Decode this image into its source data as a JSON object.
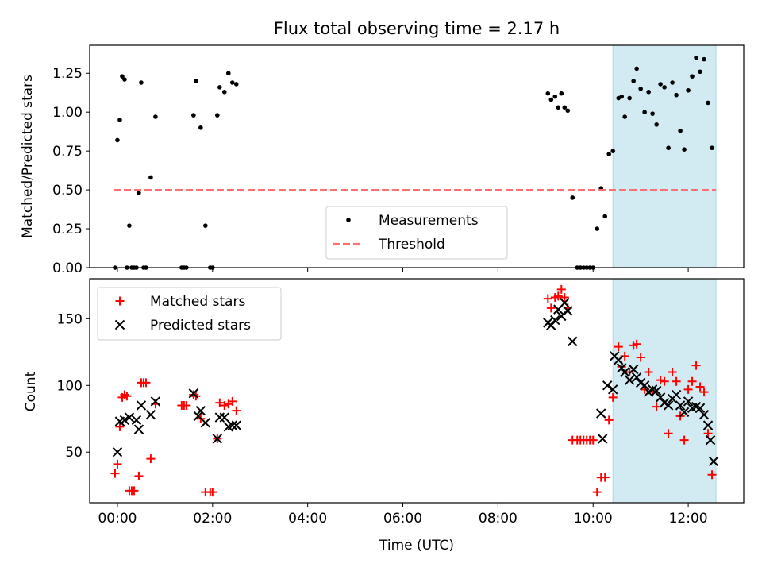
{
  "chart_data": [
    {
      "type": "scatter",
      "title": "Flux total observing time = 2.17 h",
      "ylabel": "Matched/Predicted stars",
      "xlabel": "",
      "xlim": [
        "23:25",
        "13:10"
      ],
      "ylim": [
        0,
        1.43
      ],
      "yticks": [
        "0.00",
        "0.25",
        "0.50",
        "0.75",
        "1.00",
        "1.25"
      ],
      "ytick_values": [
        0,
        0.25,
        0.5,
        0.75,
        1.0,
        1.25
      ],
      "highlight_span": [
        "10:25",
        "12:35"
      ],
      "highlight_color": "#add8e6",
      "legend_position": "lower-center",
      "series": [
        {
          "name": "Measurements",
          "marker": "dot",
          "color": "#000000",
          "points": [
            [
              "23:57",
              0.0
            ],
            [
              "00:00",
              0.82
            ],
            [
              "00:03",
              0.95
            ],
            [
              "00:06",
              1.23
            ],
            [
              "00:09",
              1.21
            ],
            [
              "00:12",
              0.0
            ],
            [
              "00:15",
              0.27
            ],
            [
              "00:18",
              0.0
            ],
            [
              "00:21",
              0.0
            ],
            [
              "00:24",
              0.0
            ],
            [
              "00:27",
              0.48
            ],
            [
              "00:30",
              1.19
            ],
            [
              "00:33",
              0.0
            ],
            [
              "00:36",
              0.0
            ],
            [
              "00:42",
              0.58
            ],
            [
              "00:48",
              0.97
            ],
            [
              "01:21",
              0.0
            ],
            [
              "01:24",
              0.0
            ],
            [
              "01:27",
              0.0
            ],
            [
              "01:36",
              0.98
            ],
            [
              "01:39",
              1.2
            ],
            [
              "01:45",
              0.9
            ],
            [
              "01:51",
              0.27
            ],
            [
              "01:57",
              0.0
            ],
            [
              "02:00",
              0.0
            ],
            [
              "02:06",
              0.98
            ],
            [
              "02:09",
              1.16
            ],
            [
              "02:15",
              1.13
            ],
            [
              "02:20",
              1.25
            ],
            [
              "02:25",
              1.19
            ],
            [
              "02:30",
              1.18
            ],
            [
              "09:03",
              1.12
            ],
            [
              "09:07",
              1.08
            ],
            [
              "09:12",
              1.1
            ],
            [
              "09:16",
              1.03
            ],
            [
              "09:20",
              1.12
            ],
            [
              "09:24",
              1.03
            ],
            [
              "09:28",
              1.01
            ],
            [
              "09:34",
              0.45
            ],
            [
              "09:40",
              0.0
            ],
            [
              "09:44",
              0.0
            ],
            [
              "09:48",
              0.0
            ],
            [
              "09:52",
              0.0
            ],
            [
              "09:56",
              0.0
            ],
            [
              "10:00",
              0.0
            ],
            [
              "10:05",
              0.25
            ],
            [
              "10:10",
              0.51
            ],
            [
              "10:15",
              0.33
            ],
            [
              "10:20",
              0.73
            ],
            [
              "10:25",
              0.75
            ],
            [
              "10:32",
              1.09
            ],
            [
              "10:36",
              1.1
            ],
            [
              "10:40",
              0.97
            ],
            [
              "10:46",
              1.09
            ],
            [
              "10:51",
              1.2
            ],
            [
              "10:55",
              1.28
            ],
            [
              "11:00",
              1.15
            ],
            [
              "11:05",
              1.0
            ],
            [
              "11:10",
              1.13
            ],
            [
              "11:15",
              0.99
            ],
            [
              "11:20",
              0.92
            ],
            [
              "11:25",
              1.18
            ],
            [
              "11:30",
              1.16
            ],
            [
              "11:35",
              0.77
            ],
            [
              "11:40",
              1.19
            ],
            [
              "11:45",
              1.11
            ],
            [
              "11:50",
              0.88
            ],
            [
              "11:55",
              0.76
            ],
            [
              "12:00",
              1.14
            ],
            [
              "12:05",
              1.23
            ],
            [
              "12:10",
              1.35
            ],
            [
              "12:15",
              1.26
            ],
            [
              "12:20",
              1.34
            ],
            [
              "12:25",
              1.06
            ],
            [
              "12:30",
              0.77
            ]
          ]
        },
        {
          "name": "Threshold",
          "marker": "dashed-line",
          "color": "#ff7070",
          "points": [
            [
              "23:55",
              0.5
            ],
            [
              "12:35",
              0.5
            ]
          ]
        }
      ]
    },
    {
      "type": "scatter",
      "title": "",
      "ylabel": "Count",
      "xlabel": "Time (UTC)",
      "xlim": [
        "23:25",
        "13:10"
      ],
      "ylim": [
        12,
        180
      ],
      "yticks": [
        "50",
        "100",
        "150"
      ],
      "ytick_values": [
        50,
        100,
        150
      ],
      "xticks": [
        "00:00",
        "02:00",
        "04:00",
        "06:00",
        "08:00",
        "10:00",
        "12:00"
      ],
      "highlight_span": [
        "10:25",
        "12:35"
      ],
      "highlight_color": "#add8e6",
      "legend_position": "upper-left",
      "series": [
        {
          "name": "Matched stars",
          "marker": "plus",
          "color": "#ff0000",
          "points": [
            [
              "23:57",
              34
            ],
            [
              "00:00",
              41
            ],
            [
              "00:03",
              69
            ],
            [
              "00:06",
              91
            ],
            [
              "00:09",
              93
            ],
            [
              "00:12",
              92
            ],
            [
              "00:15",
              21
            ],
            [
              "00:18",
              21
            ],
            [
              "00:21",
              21
            ],
            [
              "00:27",
              32
            ],
            [
              "00:30",
              102
            ],
            [
              "00:33",
              102
            ],
            [
              "00:36",
              102
            ],
            [
              "00:42",
              45
            ],
            [
              "00:48",
              86
            ],
            [
              "01:21",
              85
            ],
            [
              "01:24",
              85
            ],
            [
              "01:27",
              85
            ],
            [
              "01:36",
              93
            ],
            [
              "01:39",
              92
            ],
            [
              "01:45",
              75
            ],
            [
              "01:51",
              20
            ],
            [
              "01:57",
              20
            ],
            [
              "02:00",
              20
            ],
            [
              "02:06",
              60
            ],
            [
              "02:09",
              87
            ],
            [
              "02:15",
              85
            ],
            [
              "02:20",
              86
            ],
            [
              "02:25",
              88
            ],
            [
              "02:30",
              81
            ],
            [
              "09:03",
              165
            ],
            [
              "09:07",
              158
            ],
            [
              "09:12",
              166
            ],
            [
              "09:16",
              167
            ],
            [
              "09:20",
              172
            ],
            [
              "09:24",
              166
            ],
            [
              "09:28",
              158
            ],
            [
              "09:34",
              59
            ],
            [
              "09:40",
              59
            ],
            [
              "09:44",
              59
            ],
            [
              "09:48",
              59
            ],
            [
              "09:52",
              59
            ],
            [
              "09:56",
              59
            ],
            [
              "10:00",
              59
            ],
            [
              "10:05",
              20
            ],
            [
              "10:10",
              31
            ],
            [
              "10:15",
              31
            ],
            [
              "10:20",
              74
            ],
            [
              "10:25",
              91
            ],
            [
              "10:32",
              129
            ],
            [
              "10:36",
              114
            ],
            [
              "10:40",
              122
            ],
            [
              "10:46",
              110
            ],
            [
              "10:51",
              130
            ],
            [
              "10:55",
              131
            ],
            [
              "11:00",
              121
            ],
            [
              "11:05",
              97
            ],
            [
              "11:10",
              110
            ],
            [
              "11:15",
              95
            ],
            [
              "11:20",
              84
            ],
            [
              "11:25",
              104
            ],
            [
              "11:30",
              103
            ],
            [
              "11:35",
              64
            ],
            [
              "11:40",
              110
            ],
            [
              "11:45",
              103
            ],
            [
              "11:50",
              77
            ],
            [
              "11:55",
              59
            ],
            [
              "12:00",
              97
            ],
            [
              "12:05",
              103
            ],
            [
              "12:10",
              115
            ],
            [
              "12:15",
              99
            ],
            [
              "12:20",
              95
            ],
            [
              "12:25",
              64
            ],
            [
              "12:30",
              33
            ]
          ]
        },
        {
          "name": "Predicted stars",
          "marker": "x",
          "color": "#000000",
          "points": [
            [
              "00:00",
              50
            ],
            [
              "00:03",
              73
            ],
            [
              "00:09",
              74
            ],
            [
              "00:15",
              76
            ],
            [
              "00:24",
              74
            ],
            [
              "00:27",
              67
            ],
            [
              "00:30",
              85
            ],
            [
              "00:42",
              78
            ],
            [
              "00:48",
              88
            ],
            [
              "01:36",
              94
            ],
            [
              "01:42",
              77
            ],
            [
              "01:45",
              81
            ],
            [
              "01:51",
              72
            ],
            [
              "02:06",
              60
            ],
            [
              "02:09",
              76
            ],
            [
              "02:15",
              76
            ],
            [
              "02:20",
              69
            ],
            [
              "02:25",
              70
            ],
            [
              "02:30",
              70
            ],
            [
              "09:03",
              147
            ],
            [
              "09:07",
              145
            ],
            [
              "09:12",
              149
            ],
            [
              "09:16",
              157
            ],
            [
              "09:20",
              152
            ],
            [
              "09:24",
              162
            ],
            [
              "09:28",
              156
            ],
            [
              "09:34",
              133
            ],
            [
              "10:10",
              79
            ],
            [
              "10:12",
              60
            ],
            [
              "10:18",
              100
            ],
            [
              "10:25",
              97
            ],
            [
              "10:27",
              122
            ],
            [
              "10:32",
              119
            ],
            [
              "10:36",
              113
            ],
            [
              "10:40",
              110
            ],
            [
              "10:46",
              104
            ],
            [
              "10:51",
              112
            ],
            [
              "10:55",
              106
            ],
            [
              "11:00",
              102
            ],
            [
              "11:05",
              100
            ],
            [
              "11:10",
              95
            ],
            [
              "11:15",
              97
            ],
            [
              "11:20",
              96
            ],
            [
              "11:25",
              91
            ],
            [
              "11:30",
              87
            ],
            [
              "11:35",
              85
            ],
            [
              "11:40",
              90
            ],
            [
              "11:45",
              93
            ],
            [
              "11:50",
              85
            ],
            [
              "11:55",
              80
            ],
            [
              "12:00",
              88
            ],
            [
              "12:05",
              83
            ],
            [
              "12:10",
              84
            ],
            [
              "12:15",
              83
            ],
            [
              "12:20",
              78
            ],
            [
              "12:25",
              70
            ],
            [
              "12:28",
              59
            ],
            [
              "12:32",
              43
            ]
          ]
        }
      ]
    }
  ]
}
